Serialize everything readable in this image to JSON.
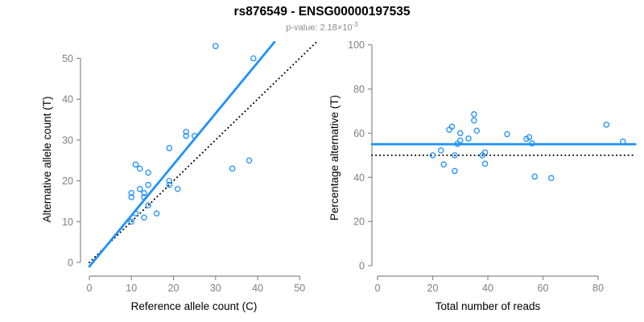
{
  "header": {
    "title": "rs876549 - ENSG00000197535",
    "pvalue_prefix": "p-value: ",
    "pvalue_mantissa": "2.18×10",
    "pvalue_exponent": "-3"
  },
  "colors": {
    "point_blue": "#1E90FF",
    "fit_blue": "#1E90FF",
    "reference_black": "#000000",
    "axis_gray": "#888888",
    "tick_label_gray": "#7f7f7f",
    "title_black": "#000000",
    "subtitle_gray": "#8c8c8c"
  },
  "chart_data": [
    {
      "type": "scatter",
      "title": "",
      "xlabel": "Reference allele count (C)",
      "ylabel": "Alternative allele count (T)",
      "xlim": [
        0,
        50
      ],
      "ylim": [
        0,
        54
      ],
      "xticks": [
        0,
        10,
        20,
        30,
        40,
        50
      ],
      "yticks": [
        0,
        10,
        20,
        30,
        40,
        50
      ],
      "grid": false,
      "legend": "none",
      "marker": "open-circle",
      "points": [
        [
          10,
          10
        ],
        [
          11,
          12
        ],
        [
          13,
          11
        ],
        [
          14,
          14
        ],
        [
          16,
          12
        ],
        [
          10,
          16
        ],
        [
          10,
          17
        ],
        [
          13,
          16
        ],
        [
          12,
          18
        ],
        [
          13,
          17
        ],
        [
          14,
          19
        ],
        [
          11,
          24
        ],
        [
          12,
          23
        ],
        [
          14,
          22
        ],
        [
          19,
          19
        ],
        [
          19,
          20
        ],
        [
          21,
          18
        ],
        [
          19,
          28
        ],
        [
          23,
          31
        ],
        [
          23,
          32
        ],
        [
          25,
          31
        ],
        [
          34,
          23
        ],
        [
          38,
          25
        ],
        [
          30,
          53
        ],
        [
          39,
          50
        ]
      ],
      "fit_line": {
        "style": "solid",
        "color": "blue",
        "x1": 0,
        "y1": -1,
        "x2": 44,
        "y2": 54
      },
      "identity_line": {
        "style": "dotted",
        "color": "black",
        "slope": 1,
        "intercept": 0,
        "x1": 0,
        "y1": 0,
        "x2": 54,
        "y2": 54
      }
    },
    {
      "type": "scatter",
      "title": "",
      "xlabel": "Total number of reads",
      "ylabel": "Percentage alternative (T)",
      "xlim": [
        0,
        90
      ],
      "ylim": [
        0,
        100
      ],
      "xticks": [
        0,
        20,
        40,
        60,
        80
      ],
      "yticks": [
        0,
        20,
        40,
        60,
        80,
        100
      ],
      "grid": false,
      "legend": "none",
      "marker": "open-circle",
      "points": [
        [
          20,
          50.0
        ],
        [
          23,
          52.17
        ],
        [
          24,
          45.83
        ],
        [
          28,
          50.0
        ],
        [
          28,
          42.86
        ],
        [
          26,
          61.54
        ],
        [
          27,
          62.96
        ],
        [
          29,
          55.17
        ],
        [
          30,
          60.0
        ],
        [
          30,
          56.67
        ],
        [
          33,
          57.58
        ],
        [
          35,
          68.57
        ],
        [
          35,
          65.71
        ],
        [
          36,
          61.11
        ],
        [
          38,
          50.0
        ],
        [
          39,
          51.28
        ],
        [
          39,
          46.15
        ],
        [
          47,
          59.57
        ],
        [
          54,
          57.41
        ],
        [
          55,
          58.18
        ],
        [
          56,
          55.36
        ],
        [
          57,
          40.35
        ],
        [
          63,
          39.68
        ],
        [
          83,
          63.86
        ],
        [
          89,
          56.18
        ]
      ],
      "fit_line": {
        "style": "solid",
        "color": "blue",
        "y": 55
      },
      "null_line": {
        "style": "dotted",
        "color": "black",
        "y": 50
      }
    }
  ]
}
